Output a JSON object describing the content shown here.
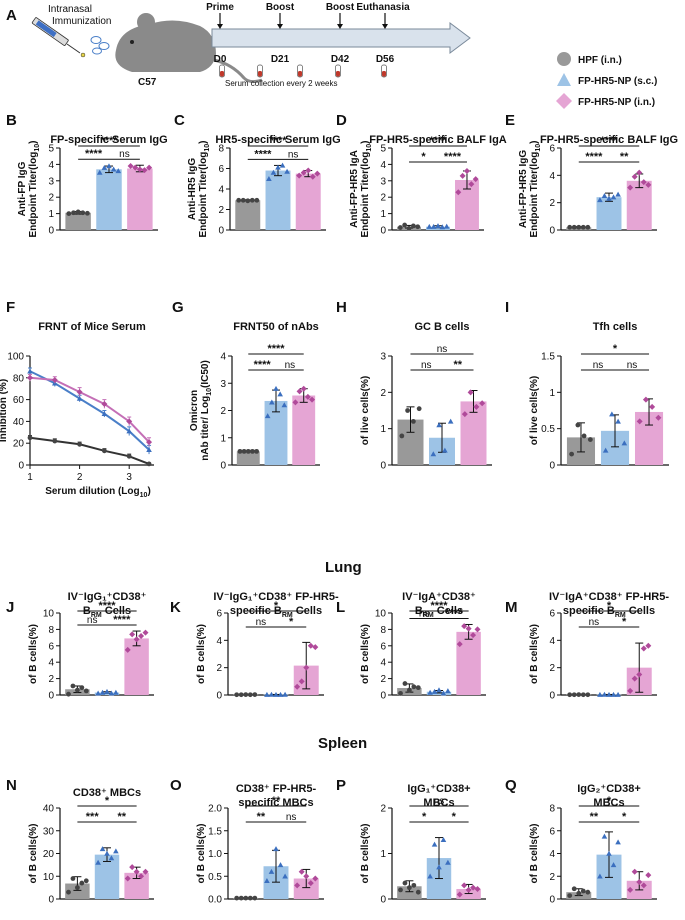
{
  "colors": {
    "gray": "#999999",
    "blue": "#9dc3e6",
    "pink": "#e5a5d4",
    "blueLine": "#4a7fc8",
    "pinkLine": "#c46fb6",
    "grayLine": "#333333"
  },
  "panelA": {
    "label": "A",
    "immunization": "Intranasal Immunization",
    "mouse": "C57",
    "timeline": [
      {
        "day": "D0",
        "event": "Prime"
      },
      {
        "day": "D21",
        "event": "Boost"
      },
      {
        "day": "D42",
        "event": "Boost"
      },
      {
        "day": "D56",
        "event": "Euthanasia"
      }
    ],
    "serum": "Serum collection every 2 weeks"
  },
  "legend": [
    {
      "name": "HPF (i.n.)",
      "color": "gray",
      "shape": "circle"
    },
    {
      "name": "FP-HR5-NP (s.c.)",
      "color": "blue",
      "shape": "triangle"
    },
    {
      "name": "FP-HR5-NP (i.n.)",
      "color": "pink",
      "shape": "diamond"
    }
  ],
  "sections": {
    "lung": "Lung",
    "spleen": "Spleen"
  },
  "chart_data": [
    {
      "label": "B",
      "type": "bar",
      "title": "FP-specific Serum IgG",
      "ylabel": [
        "Anti-FP IgG",
        "Endpoint Titer(log10)"
      ],
      "ylim": [
        0,
        5
      ],
      "ticks": [
        0,
        1,
        2,
        3,
        4,
        5
      ],
      "values": [
        1.05,
        3.7,
        3.75
      ],
      "errors": [
        0.08,
        0.2,
        0.2
      ],
      "points": [
        [
          1,
          1.05,
          1.1,
          1.05,
          1.02
        ],
        [
          3.5,
          3.8,
          3.9,
          3.7,
          3.6
        ],
        [
          3.9,
          3.8,
          3.7,
          3.65,
          3.8
        ]
      ],
      "sig": [
        {
          "a": 0,
          "b": 1,
          "t": "****",
          "level": 1
        },
        {
          "a": 0,
          "b": 2,
          "t": "****",
          "level": 2
        },
        {
          "a": 1,
          "b": 2,
          "t": "ns",
          "level": 1
        }
      ]
    },
    {
      "label": "C",
      "type": "bar",
      "title": "HR5-specific Serum IgG",
      "ylabel": [
        "Anti-HR5 IgG",
        "Endpoint Titer(log10)"
      ],
      "ylim": [
        0,
        8
      ],
      "ticks": [
        0,
        2,
        4,
        6,
        8
      ],
      "values": [
        2.9,
        5.8,
        5.5
      ],
      "errors": [
        0.05,
        0.5,
        0.3
      ],
      "points": [
        [
          2.9,
          2.9,
          2.85,
          2.9,
          2.9
        ],
        [
          5.0,
          5.6,
          6.1,
          6.3,
          5.7
        ],
        [
          5.3,
          5.6,
          5.8,
          5.2,
          5.5
        ]
      ],
      "sig": [
        {
          "a": 0,
          "b": 1,
          "t": "****",
          "level": 1
        },
        {
          "a": 0,
          "b": 2,
          "t": "****",
          "level": 2
        },
        {
          "a": 1,
          "b": 2,
          "t": "ns",
          "level": 1
        }
      ]
    },
    {
      "label": "D",
      "type": "bar",
      "title": "FP-HR5-specific BALF IgA",
      "ylabel": [
        "Anti-FP-HR5 IgA",
        "Endpoint Titer(log10)"
      ],
      "ylim": [
        0,
        5
      ],
      "ticks": [
        0,
        1,
        2,
        3,
        4,
        5
      ],
      "values": [
        0.2,
        0.2,
        3.05
      ],
      "errors": [
        0.08,
        0.06,
        0.55
      ],
      "points": [
        [
          0.15,
          0.3,
          0.1,
          0.25,
          0.2
        ],
        [
          0.2,
          0.2,
          0.25,
          0.18,
          0.22
        ],
        [
          2.3,
          3.3,
          3.6,
          2.8,
          3.1
        ]
      ],
      "sig": [
        {
          "a": 0,
          "b": 1,
          "t": "*",
          "level": 1
        },
        {
          "a": 0,
          "b": 2,
          "t": "****",
          "level": 2
        },
        {
          "a": 1,
          "b": 2,
          "t": "****",
          "level": 1
        }
      ]
    },
    {
      "label": "E",
      "type": "bar",
      "title": "FP-HR5-specific BALF IgG",
      "ylabel": [
        "Anti-FP-HR5 IgG",
        "Endpoint Titer(log10)"
      ],
      "ylim": [
        0,
        6
      ],
      "ticks": [
        0,
        2,
        4,
        6
      ],
      "values": [
        0.2,
        2.4,
        3.6
      ],
      "errors": [
        0.05,
        0.3,
        0.5
      ],
      "points": [
        [
          0.2,
          0.2,
          0.2,
          0.2,
          0.2
        ],
        [
          2.2,
          2.5,
          2.3,
          2.4,
          2.6
        ],
        [
          3.1,
          3.9,
          4.2,
          3.5,
          3.3
        ]
      ],
      "sig": [
        {
          "a": 0,
          "b": 1,
          "t": "****",
          "level": 1
        },
        {
          "a": 0,
          "b": 2,
          "t": "****",
          "level": 2
        },
        {
          "a": 1,
          "b": 2,
          "t": "**",
          "level": 1
        }
      ]
    },
    {
      "label": "F",
      "type": "line",
      "title": "FRNT of Mice Serum",
      "ylabel": [
        "Inhibition (%)"
      ],
      "xlabel": "Serum dilution (Log10)",
      "xlim": [
        1,
        3.5
      ],
      "ylim": [
        0,
        100
      ],
      "xticks": [
        1,
        2,
        3
      ],
      "ticks": [
        0,
        20,
        40,
        60,
        80,
        100
      ],
      "series": [
        {
          "name": "HPF (i.n.)",
          "color": "grayLine",
          "x": [
            1,
            1.5,
            2,
            2.5,
            3,
            3.4
          ],
          "y": [
            25,
            22,
            19,
            13,
            8,
            1
          ],
          "err": [
            2,
            2,
            2,
            2,
            2,
            1
          ]
        },
        {
          "name": "FP-HR5-NP (s.c.)",
          "color": "blueLine",
          "x": [
            1,
            1.5,
            2,
            2.5,
            3,
            3.4
          ],
          "y": [
            86,
            75,
            61,
            47,
            31,
            14
          ],
          "err": [
            3,
            3,
            3,
            3,
            4,
            4
          ]
        },
        {
          "name": "FP-HR5-NP (i.n.)",
          "color": "pinkLine",
          "x": [
            1,
            1.5,
            2,
            2.5,
            3,
            3.4
          ],
          "y": [
            80,
            78,
            67,
            56,
            40,
            21
          ],
          "err": [
            3,
            3,
            4,
            4,
            4,
            4
          ]
        }
      ]
    },
    {
      "label": "G",
      "type": "bar",
      "title": "FRNT50 of nAbs",
      "ylabel": [
        "Omicron",
        "nAb titer/ Log10(IC50)"
      ],
      "ylim": [
        0,
        4
      ],
      "ticks": [
        0,
        1,
        2,
        3,
        4
      ],
      "values": [
        0.5,
        2.35,
        2.55
      ],
      "errors": [
        0.02,
        0.4,
        0.25
      ],
      "points": [
        [
          0.5,
          0.5,
          0.5,
          0.5,
          0.5
        ],
        [
          1.8,
          2.3,
          2.8,
          2.6,
          2.2
        ],
        [
          2.3,
          2.7,
          2.8,
          2.5,
          2.4
        ]
      ],
      "sig": [
        {
          "a": 0,
          "b": 1,
          "t": "****",
          "level": 1
        },
        {
          "a": 0,
          "b": 2,
          "t": "****",
          "level": 2
        },
        {
          "a": 1,
          "b": 2,
          "t": "ns",
          "level": 1
        }
      ]
    },
    {
      "label": "H",
      "type": "bar",
      "title": "GC B cells",
      "ylabel": [
        "of live cells(%)"
      ],
      "ylim": [
        0,
        3
      ],
      "ticks": [
        0,
        1,
        2,
        3
      ],
      "values": [
        1.25,
        0.75,
        1.75
      ],
      "errors": [
        0.35,
        0.4,
        0.3
      ],
      "points": [
        [
          0.8,
          1.5,
          1.2,
          1.55
        ],
        [
          0.3,
          1.1,
          0.4,
          1.2
        ],
        [
          1.4,
          2.0,
          1.6,
          1.7
        ]
      ],
      "sig": [
        {
          "a": 0,
          "b": 1,
          "t": "ns",
          "level": 1
        },
        {
          "a": 0,
          "b": 2,
          "t": "ns",
          "level": 2
        },
        {
          "a": 1,
          "b": 2,
          "t": "**",
          "level": 1
        }
      ]
    },
    {
      "label": "I",
      "type": "bar",
      "title": "Tfh cells",
      "ylabel": [
        "of live cells(%)"
      ],
      "ylim": [
        0,
        1.5
      ],
      "ticks": [
        0.0,
        0.5,
        1.0,
        1.5
      ],
      "values": [
        0.38,
        0.47,
        0.73
      ],
      "errors": [
        0.2,
        0.22,
        0.18
      ],
      "points": [
        [
          0.15,
          0.55,
          0.4,
          0.35
        ],
        [
          0.2,
          0.7,
          0.6,
          0.3
        ],
        [
          0.6,
          0.9,
          0.8,
          0.65
        ]
      ],
      "sig": [
        {
          "a": 0,
          "b": 1,
          "t": "ns",
          "level": 1
        },
        {
          "a": 0,
          "b": 2,
          "t": "*",
          "level": 2
        },
        {
          "a": 1,
          "b": 2,
          "t": "ns",
          "level": 1
        }
      ]
    },
    {
      "label": "J",
      "type": "bar",
      "title": [
        "IV⁻IgG₁⁺CD38⁺",
        "B_RM Cells"
      ],
      "ylabel": [
        "of B cells(%)"
      ],
      "ylim": [
        0,
        10
      ],
      "ticks": [
        0,
        2,
        4,
        6,
        8,
        10
      ],
      "values": [
        0.7,
        0.3,
        6.9
      ],
      "errors": [
        0.4,
        0.1,
        0.9
      ],
      "points": [
        [
          0.1,
          1.1,
          0.6,
          0.9,
          0.5
        ],
        [
          0.2,
          0.3,
          0.4,
          0.2,
          0.3
        ],
        [
          5.5,
          7.4,
          6.8,
          7.2,
          7.6
        ]
      ],
      "sig": [
        {
          "a": 0,
          "b": 1,
          "t": "ns",
          "level": 1
        },
        {
          "a": 0,
          "b": 2,
          "t": "****",
          "level": 2
        },
        {
          "a": 1,
          "b": 2,
          "t": "****",
          "level": 1
        }
      ]
    },
    {
      "label": "K",
      "type": "bar",
      "title": [
        "IV⁻IgG₁⁺CD38⁺ FP-HR5-",
        "specific B_RM Cells"
      ],
      "ylabel": [
        "of B cells(%)"
      ],
      "ylim": [
        0,
        6
      ],
      "ticks": [
        0,
        2,
        4,
        6
      ],
      "values": [
        0.03,
        0.03,
        2.15
      ],
      "errors": [
        0.01,
        0.01,
        1.7
      ],
      "points": [
        [
          0.02,
          0.02,
          0.03,
          0.02,
          0.03
        ],
        [
          0.02,
          0.03,
          0.02,
          0.02,
          0.03
        ],
        [
          0.6,
          1.0,
          2.0,
          3.6,
          3.5
        ]
      ],
      "sig": [
        {
          "a": 0,
          "b": 1,
          "t": "ns",
          "level": 1
        },
        {
          "a": 0,
          "b": 2,
          "t": "*",
          "level": 2
        },
        {
          "a": 1,
          "b": 2,
          "t": "*",
          "level": 1
        }
      ]
    },
    {
      "label": "L",
      "type": "bar",
      "title": [
        "IV⁻IgA⁺CD38⁺",
        "B_RM Cells"
      ],
      "ylabel": [
        "of B cells(%)"
      ],
      "ylim": [
        0,
        10
      ],
      "ticks": [
        0,
        2,
        4,
        6,
        8,
        10
      ],
      "values": [
        0.85,
        0.4,
        7.7
      ],
      "errors": [
        0.5,
        0.15,
        0.9
      ],
      "points": [
        [
          0.2,
          1.4,
          0.6,
          1.0,
          0.9
        ],
        [
          0.3,
          0.4,
          0.6,
          0.2,
          0.5
        ],
        [
          6.2,
          8.4,
          8.1,
          7.3,
          8.0
        ]
      ],
      "sig": [
        {
          "a": 0,
          "b": 1,
          "t": "ns",
          "level": 1
        },
        {
          "a": 0,
          "b": 2,
          "t": "****",
          "level": 2
        },
        {
          "a": 1,
          "b": 2,
          "t": "****",
          "level": 1
        }
      ]
    },
    {
      "label": "M",
      "type": "bar",
      "title": [
        "IV⁻IgA⁺CD38⁺ FP-HR5-",
        "specific B_RM Cells"
      ],
      "ylabel": [
        "of B cells(%)"
      ],
      "ylim": [
        0,
        6
      ],
      "ticks": [
        0,
        2,
        4,
        6
      ],
      "values": [
        0.03,
        0.03,
        2.0
      ],
      "errors": [
        0.01,
        0.01,
        1.8
      ],
      "points": [
        [
          0.02,
          0.02,
          0.03,
          0.02,
          0.02
        ],
        [
          0.02,
          0.03,
          0.02,
          0.02,
          0.02
        ],
        [
          0.3,
          1.2,
          1.5,
          3.4,
          3.6
        ]
      ],
      "sig": [
        {
          "a": 0,
          "b": 1,
          "t": "ns",
          "level": 1
        },
        {
          "a": 0,
          "b": 2,
          "t": "*",
          "level": 2
        },
        {
          "a": 1,
          "b": 2,
          "t": "*",
          "level": 1
        }
      ]
    },
    {
      "label": "N",
      "type": "bar",
      "title": "CD38⁺ MBCs",
      "ylabel": [
        "of B cells(%)"
      ],
      "ylim": [
        0,
        40
      ],
      "ticks": [
        0,
        10,
        20,
        30,
        40
      ],
      "values": [
        6.8,
        19.5,
        11.5
      ],
      "errors": [
        3,
        3,
        2.5
      ],
      "points": [
        [
          3,
          9,
          5,
          7,
          8
        ],
        [
          16,
          22,
          20,
          18,
          21
        ],
        [
          9,
          14,
          12,
          10,
          12
        ]
      ],
      "sig": [
        {
          "a": 0,
          "b": 1,
          "t": "***",
          "level": 1
        },
        {
          "a": 0,
          "b": 2,
          "t": "*",
          "level": 2
        },
        {
          "a": 1,
          "b": 2,
          "t": "**",
          "level": 1
        }
      ]
    },
    {
      "label": "O",
      "type": "bar",
      "title": [
        "CD38⁺ FP-HR5-",
        "specific MBCs"
      ],
      "ylabel": [
        "of B cells(%)"
      ],
      "ylim": [
        0,
        2
      ],
      "ticks": [
        "0.0",
        "0.5",
        "1.0",
        "1.5",
        "2.0"
      ],
      "values": [
        0.02,
        0.72,
        0.45
      ],
      "errors": [
        0.01,
        0.35,
        0.2
      ],
      "points": [
        [
          0.02,
          0.02,
          0.02,
          0.02,
          0.02
        ],
        [
          0.4,
          0.6,
          1.1,
          0.75,
          0.5
        ],
        [
          0.3,
          0.6,
          0.5,
          0.35,
          0.45
        ]
      ],
      "sig": [
        {
          "a": 0,
          "b": 1,
          "t": "**",
          "level": 1
        },
        {
          "a": 0,
          "b": 2,
          "t": "**",
          "level": 2
        },
        {
          "a": 1,
          "b": 2,
          "t": "ns",
          "level": 1
        }
      ]
    },
    {
      "label": "P",
      "type": "bar",
      "title": [
        "IgG₁⁺CD38+",
        "MBCs"
      ],
      "ylabel": [
        "of B cells(%)"
      ],
      "ylim": [
        0,
        2
      ],
      "ticks": [
        0,
        1,
        2
      ],
      "values": [
        0.28,
        0.9,
        0.22
      ],
      "errors": [
        0.12,
        0.45,
        0.1
      ],
      "points": [
        [
          0.2,
          0.35,
          0.25,
          0.3,
          0.15
        ],
        [
          0.5,
          1.2,
          0.7,
          1.3,
          0.8
        ],
        [
          0.1,
          0.3,
          0.2,
          0.25,
          0.22
        ]
      ],
      "sig": [
        {
          "a": 0,
          "b": 1,
          "t": "*",
          "level": 1
        },
        {
          "a": 0,
          "b": 2,
          "t": "ns",
          "level": 2
        },
        {
          "a": 1,
          "b": 2,
          "t": "*",
          "level": 1
        }
      ]
    },
    {
      "label": "Q",
      "type": "bar",
      "title": [
        "IgG₂⁺CD38+",
        "MBCs"
      ],
      "ylabel": [
        "of B cells(%)"
      ],
      "ylim": [
        0,
        8
      ],
      "ticks": [
        0,
        2,
        4,
        6,
        8
      ],
      "values": [
        0.6,
        3.9,
        1.6
      ],
      "errors": [
        0.3,
        2,
        0.8
      ],
      "points": [
        [
          0.3,
          0.9,
          0.5,
          0.7,
          0.6
        ],
        [
          2,
          5.5,
          4,
          3,
          5
        ],
        [
          0.8,
          2.4,
          1.5,
          1.2,
          2.1
        ]
      ],
      "sig": [
        {
          "a": 0,
          "b": 1,
          "t": "**",
          "level": 1
        },
        {
          "a": 0,
          "b": 2,
          "t": "*",
          "level": 2
        },
        {
          "a": 1,
          "b": 2,
          "t": "*",
          "level": 1
        }
      ]
    }
  ]
}
